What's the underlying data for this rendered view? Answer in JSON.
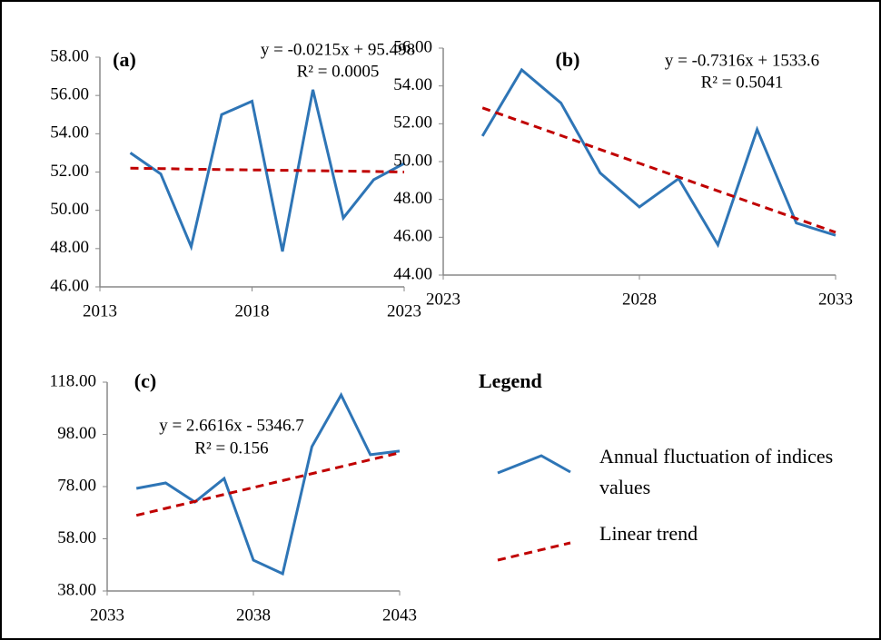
{
  "chart_data": [
    {
      "type": "line",
      "panel_label": "(a)",
      "equation": "y = -0.0215x + 95.498",
      "r_squared": "R² = 0.0005",
      "x": [
        2014,
        2015,
        2016,
        2017,
        2018,
        2019,
        2020,
        2021,
        2022,
        2023
      ],
      "series": [
        {
          "name": "Annual fluctuation of indices values",
          "color": "#2e75b6",
          "dashed": false,
          "values": [
            53.0,
            51.9,
            48.1,
            55.0,
            55.7,
            47.85,
            56.3,
            49.6,
            51.6,
            52.45
          ]
        },
        {
          "name": "Linear trend",
          "color": "#c00000",
          "dashed": true,
          "values": [
            52.2,
            52.18,
            52.15,
            52.13,
            52.11,
            52.09,
            52.07,
            52.05,
            52.03,
            52.0
          ]
        }
      ],
      "xlim": [
        2013,
        2023
      ],
      "xticks": [
        2013,
        2018,
        2023
      ],
      "ylim": [
        46,
        58
      ],
      "yticks": [
        {
          "value": 46,
          "label": "46.00"
        },
        {
          "value": 48,
          "label": "48.00"
        },
        {
          "value": 50,
          "label": "50.00"
        },
        {
          "value": 52,
          "label": "52.00"
        },
        {
          "value": 54,
          "label": "54.00"
        },
        {
          "value": 56,
          "label": "56.00"
        },
        {
          "value": 58,
          "label": "58.00"
        }
      ]
    },
    {
      "type": "line",
      "panel_label": "(b)",
      "equation": "y = -0.7316x + 1533.6",
      "r_squared": "R² = 0.5041",
      "x": [
        2024,
        2025,
        2026,
        2027,
        2028,
        2029,
        2030,
        2031,
        2032,
        2033
      ],
      "series": [
        {
          "name": "Annual fluctuation of indices values",
          "color": "#2e75b6",
          "dashed": false,
          "values": [
            51.35,
            54.85,
            53.1,
            49.4,
            47.6,
            49.1,
            45.6,
            51.7,
            46.75,
            46.1
          ]
        },
        {
          "name": "Linear trend",
          "color": "#c00000",
          "dashed": true,
          "values": [
            52.84,
            52.11,
            51.38,
            50.64,
            49.91,
            49.18,
            48.45,
            47.72,
            46.99,
            46.26
          ]
        }
      ],
      "xlim": [
        2023,
        2033
      ],
      "xticks": [
        2023,
        2028,
        2033
      ],
      "ylim": [
        44,
        56
      ],
      "yticks": [
        {
          "value": 44,
          "label": "44.00"
        },
        {
          "value": 46,
          "label": "46.00"
        },
        {
          "value": 48,
          "label": "48.00"
        },
        {
          "value": 50,
          "label": "50.00"
        },
        {
          "value": 52,
          "label": "52.00"
        },
        {
          "value": 54,
          "label": "54.00"
        },
        {
          "value": 56,
          "label": "56.00"
        }
      ]
    },
    {
      "type": "line",
      "panel_label": "(c)",
      "equation": "y = 2.6616x - 5346.7",
      "r_squared": "R² = 0.156",
      "x": [
        2034,
        2035,
        2036,
        2037,
        2038,
        2039,
        2040,
        2041,
        2042,
        2043
      ],
      "series": [
        {
          "name": "Annual fluctuation of indices values",
          "color": "#2e75b6",
          "dashed": false,
          "values": [
            77.3,
            79.4,
            72.1,
            81.1,
            49.8,
            44.6,
            93.3,
            113.1,
            90.2,
            91.6
          ]
        },
        {
          "name": "Linear trend",
          "color": "#c00000",
          "dashed": true,
          "values": [
            66.99,
            69.65,
            72.31,
            74.98,
            77.64,
            80.3,
            82.96,
            85.62,
            88.29,
            90.95
          ]
        }
      ],
      "xlim": [
        2033,
        2043
      ],
      "xticks": [
        2033,
        2038,
        2043
      ],
      "ylim": [
        38,
        118
      ],
      "yticks": [
        {
          "value": 38,
          "label": "38.00"
        },
        {
          "value": 58,
          "label": "58.00"
        },
        {
          "value": 78,
          "label": "78.00"
        },
        {
          "value": 98,
          "label": "98.00"
        },
        {
          "value": 118,
          "label": "118.00"
        }
      ]
    }
  ],
  "legend": {
    "title": "Legend"
  }
}
